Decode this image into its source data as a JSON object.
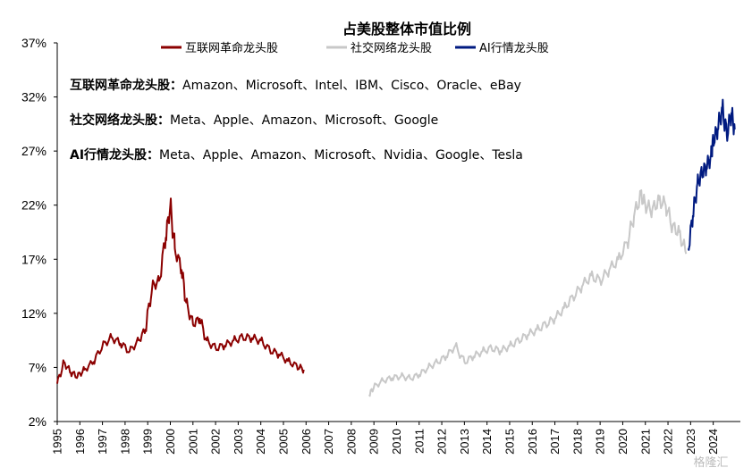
{
  "chart_data": {
    "type": "line",
    "title": "占美股整体市值比例",
    "ylim": [
      2,
      37
    ],
    "y_ticks": [
      "37%",
      "32%",
      "27%",
      "22%",
      "17%",
      "12%",
      "7%",
      "2%"
    ],
    "x_ticks": [
      "1995",
      "1996",
      "1997",
      "1998",
      "1999",
      "2000",
      "2001",
      "2002",
      "2003",
      "2004",
      "2005",
      "2006",
      "2007",
      "2008",
      "2009",
      "2010",
      "2011",
      "2012",
      "2013",
      "2014",
      "2015",
      "2016",
      "2017",
      "2018",
      "2019",
      "2020",
      "2021",
      "2022",
      "2023",
      "2024"
    ],
    "grid": false,
    "legend": "top-center",
    "series": [
      {
        "name": "互联网革命龙头股",
        "color": "#8b0000",
        "x": [
          1995.0,
          1995.3,
          1995.6,
          1995.9,
          1996.2,
          1996.6,
          1997.0,
          1997.4,
          1997.8,
          1998.2,
          1998.6,
          1998.9,
          1999.2,
          1999.5,
          1999.8,
          2000.0,
          2000.2,
          2000.5,
          2000.7,
          2001.0,
          2001.3,
          2001.6,
          2002.0,
          2002.4,
          2002.8,
          2003.2,
          2003.6,
          2004.0,
          2004.4,
          2004.8,
          2005.2,
          2005.6,
          2005.9
        ],
        "values": [
          5.5,
          7.5,
          6.5,
          6.2,
          6.8,
          7.5,
          9.0,
          9.8,
          9.2,
          8.5,
          9.5,
          10.5,
          14.5,
          15.0,
          19.0,
          22.0,
          18.0,
          16.0,
          13.0,
          11.0,
          11.5,
          9.5,
          8.8,
          9.0,
          9.5,
          9.8,
          9.7,
          9.5,
          8.6,
          8.2,
          7.6,
          7.1,
          6.8
        ]
      },
      {
        "name": "社交网络龙头股",
        "color": "#c8c8c8",
        "x": [
          2008.8,
          2009.0,
          2009.4,
          2009.8,
          2010.2,
          2010.6,
          2011.0,
          2011.4,
          2011.8,
          2012.2,
          2012.6,
          2013.0,
          2013.4,
          2013.8,
          2014.2,
          2014.6,
          2015.0,
          2015.4,
          2015.8,
          2016.2,
          2016.6,
          2017.0,
          2017.4,
          2017.8,
          2018.2,
          2018.6,
          2019.0,
          2019.4,
          2019.8,
          2020.2,
          2020.5,
          2020.8,
          2021.0,
          2021.3,
          2021.6,
          2021.9,
          2022.2,
          2022.5,
          2022.8
        ],
        "values": [
          4.5,
          5.2,
          5.8,
          6.0,
          6.2,
          6.0,
          6.3,
          7.0,
          7.5,
          8.0,
          9.0,
          7.5,
          8.0,
          8.5,
          8.8,
          8.5,
          9.0,
          9.5,
          10.0,
          10.5,
          11.0,
          11.5,
          12.5,
          13.5,
          14.5,
          15.5,
          15.0,
          16.0,
          17.0,
          18.5,
          21.0,
          23.0,
          22.0,
          21.5,
          22.5,
          22.0,
          20.0,
          19.5,
          17.5
        ]
      },
      {
        "name": "AI行情龙头股",
        "color": "#001a80",
        "x": [
          2022.9,
          2023.1,
          2023.3,
          2023.5,
          2023.7,
          2023.9,
          2024.0,
          2024.2,
          2024.4,
          2024.6,
          2024.8,
          2024.95
        ],
        "values": [
          18.0,
          21.0,
          24.0,
          25.0,
          25.5,
          26.5,
          28.0,
          29.0,
          31.0,
          28.5,
          30.5,
          29.0
        ]
      }
    ]
  },
  "annotations": [
    {
      "label": "互联网革命龙头股：",
      "companies": "Amazon、Microsoft、Intel、IBM、Cisco、Oracle、eBay"
    },
    {
      "label": "社交网络龙头股：",
      "companies": "Meta、Apple、Amazon、Microsoft、Google"
    },
    {
      "label": "AI行情龙头股：",
      "companies": "Meta、Apple、Amazon、Microsoft、Nvidia、Google、Tesla"
    }
  ],
  "watermark": "格隆汇"
}
